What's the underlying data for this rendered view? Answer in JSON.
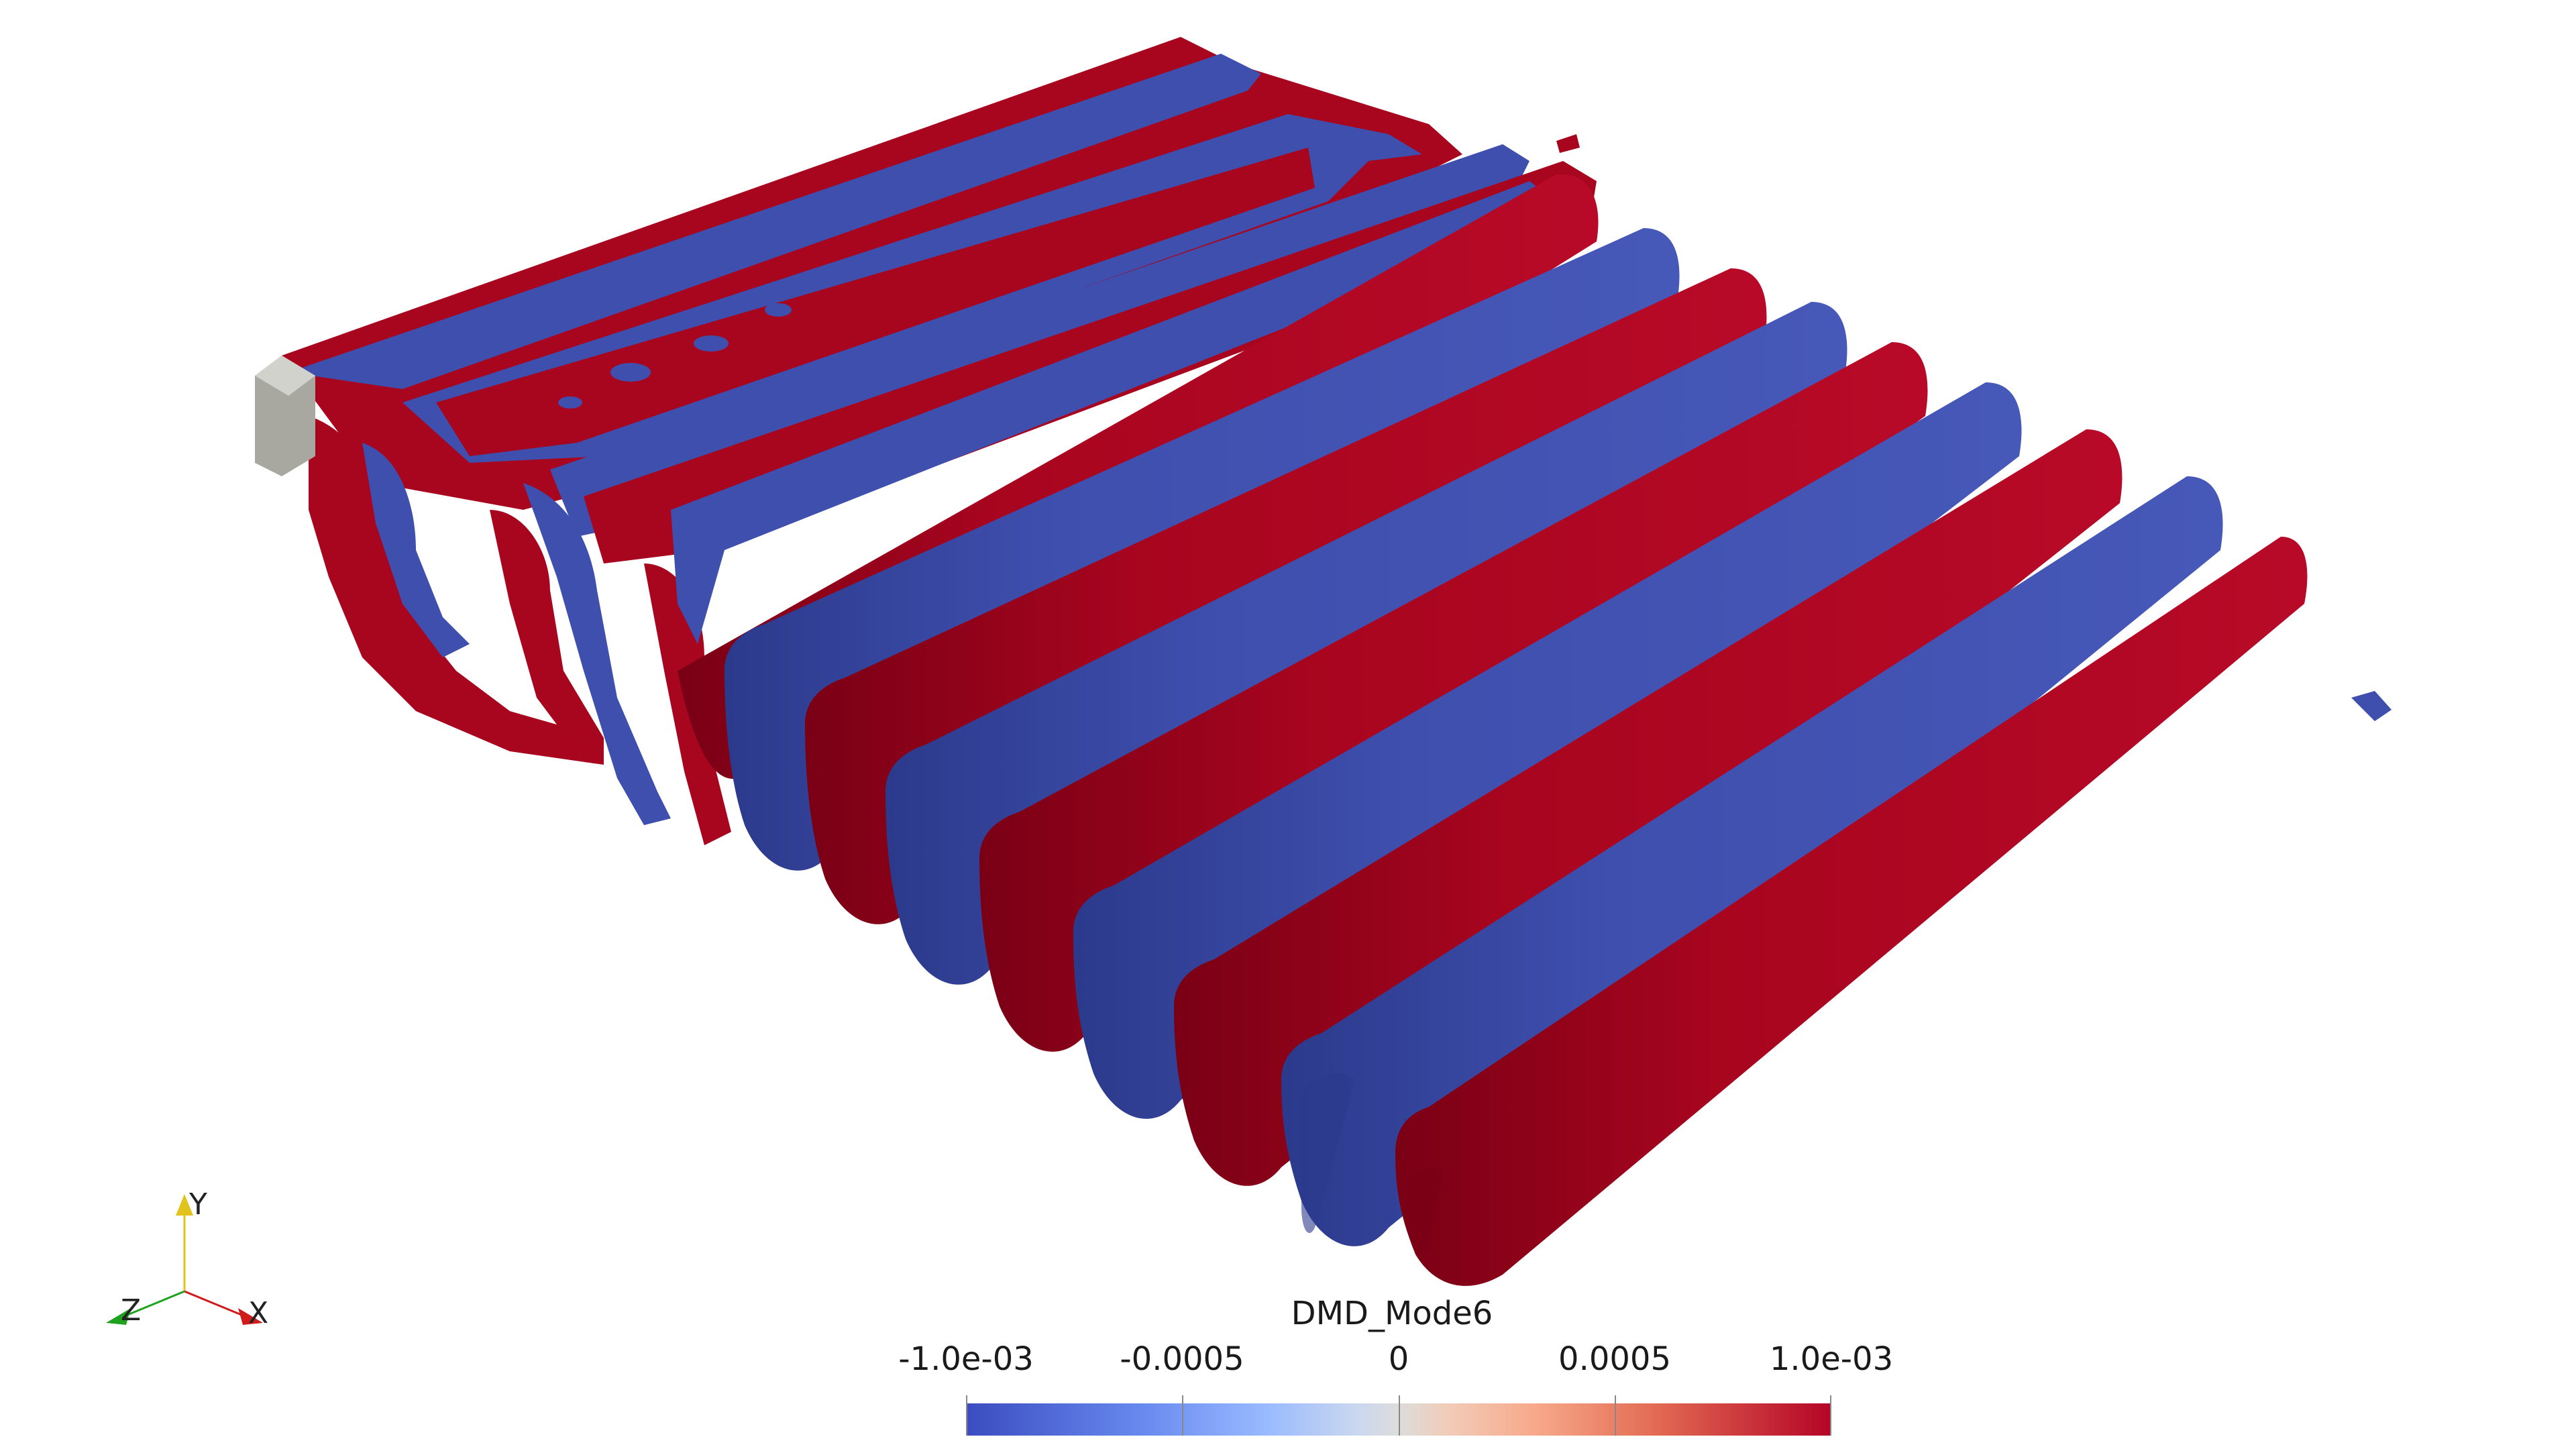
{
  "render_view": {
    "background": "#ffffff",
    "positive_color": "#a8051f",
    "negative_color": "#3f4fae",
    "geometry_color": "#a8a8a0"
  },
  "scalar_bar": {
    "title": "DMD_Mode6",
    "ticks": [
      "-1.0e-03",
      "-0.0005",
      "0",
      "0.0005",
      "1.0e-03"
    ],
    "range": [
      -0.001,
      0.001
    ],
    "colormap": "Cool to Warm"
  },
  "orientation_axes": {
    "x_label": "X",
    "y_label": "Y",
    "z_label": "Z",
    "x_color": "#d01b1b",
    "y_color": "#e2c21c",
    "z_color": "#1fa31f"
  }
}
